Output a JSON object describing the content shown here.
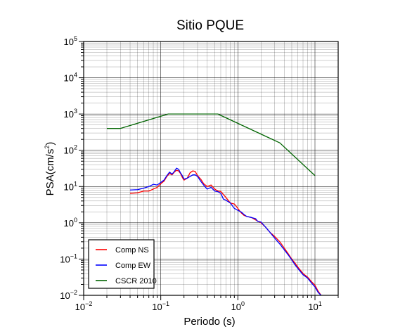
{
  "chart_data": {
    "type": "line",
    "title": "Sitio PQUE",
    "xlabel": "Periodo (s)",
    "ylabel": "PSA(cm/s²)",
    "ylabel_base": "PSA(cm/s",
    "ylabel_sup": "2",
    "ylabel_end": ")",
    "xscale": "log",
    "yscale": "log",
    "xlim": [
      0.01,
      20
    ],
    "ylim": [
      0.01,
      100000
    ],
    "grid": true,
    "legend_position": "bottom-left",
    "x_ticks": [
      {
        "base": "10",
        "exp": "−2"
      },
      {
        "base": "10",
        "exp": "−1"
      },
      {
        "base": "10",
        "exp": "0"
      },
      {
        "base": "10",
        "exp": "1"
      }
    ],
    "y_ticks": [
      {
        "base": "10",
        "exp": "−2"
      },
      {
        "base": "10",
        "exp": "−1"
      },
      {
        "base": "10",
        "exp": "0"
      },
      {
        "base": "10",
        "exp": "1"
      },
      {
        "base": "10",
        "exp": "2"
      },
      {
        "base": "10",
        "exp": "3"
      },
      {
        "base": "10",
        "exp": "4"
      },
      {
        "base": "10",
        "exp": "5"
      }
    ],
    "series": [
      {
        "name": "Comp NS",
        "color": "#ff0000",
        "points": [
          [
            0.04,
            6.5
          ],
          [
            0.05,
            6.7
          ],
          [
            0.06,
            7.5
          ],
          [
            0.07,
            7.5
          ],
          [
            0.08,
            8.5
          ],
          [
            0.09,
            9.5
          ],
          [
            0.1,
            12
          ],
          [
            0.11,
            14
          ],
          [
            0.12,
            19
          ],
          [
            0.13,
            23
          ],
          [
            0.14,
            21
          ],
          [
            0.15,
            25
          ],
          [
            0.16,
            28
          ],
          [
            0.17,
            27
          ],
          [
            0.18,
            23
          ],
          [
            0.19,
            18
          ],
          [
            0.2,
            15
          ],
          [
            0.22,
            17
          ],
          [
            0.24,
            24
          ],
          [
            0.26,
            27
          ],
          [
            0.28,
            26
          ],
          [
            0.3,
            20
          ],
          [
            0.33,
            16
          ],
          [
            0.36,
            12
          ],
          [
            0.4,
            10
          ],
          [
            0.45,
            11
          ],
          [
            0.5,
            8.5
          ],
          [
            0.55,
            7.5
          ],
          [
            0.6,
            7.3
          ],
          [
            0.7,
            5
          ],
          [
            0.8,
            3.5
          ],
          [
            0.9,
            3.3
          ],
          [
            1.0,
            2.5
          ],
          [
            1.1,
            1.9
          ],
          [
            1.2,
            1.6
          ],
          [
            1.3,
            1.5
          ],
          [
            1.5,
            1.4
          ],
          [
            1.7,
            1.2
          ],
          [
            2.0,
            1.0
          ],
          [
            2.3,
            0.75
          ],
          [
            2.6,
            0.55
          ],
          [
            3.0,
            0.42
          ],
          [
            3.5,
            0.3
          ],
          [
            4.0,
            0.2
          ],
          [
            4.5,
            0.14
          ],
          [
            5.0,
            0.1
          ],
          [
            5.5,
            0.078
          ],
          [
            6.0,
            0.06
          ],
          [
            7.0,
            0.04
          ],
          [
            8.0,
            0.032
          ],
          [
            9.0,
            0.024
          ],
          [
            10.0,
            0.019
          ],
          [
            11.0,
            0.013
          ],
          [
            12.0,
            0.01
          ]
        ]
      },
      {
        "name": "Comp EW",
        "color": "#0000ff",
        "points": [
          [
            0.04,
            8
          ],
          [
            0.05,
            8.2
          ],
          [
            0.06,
            9
          ],
          [
            0.07,
            10
          ],
          [
            0.08,
            11.5
          ],
          [
            0.09,
            11
          ],
          [
            0.1,
            13
          ],
          [
            0.11,
            15
          ],
          [
            0.12,
            20
          ],
          [
            0.13,
            25
          ],
          [
            0.14,
            22
          ],
          [
            0.15,
            26
          ],
          [
            0.16,
            32
          ],
          [
            0.17,
            30
          ],
          [
            0.18,
            24
          ],
          [
            0.19,
            20
          ],
          [
            0.2,
            16
          ],
          [
            0.22,
            17
          ],
          [
            0.24,
            19
          ],
          [
            0.26,
            21
          ],
          [
            0.28,
            21
          ],
          [
            0.3,
            19
          ],
          [
            0.33,
            14
          ],
          [
            0.36,
            11
          ],
          [
            0.4,
            8.5
          ],
          [
            0.45,
            9.5
          ],
          [
            0.5,
            7.5
          ],
          [
            0.55,
            7.2
          ],
          [
            0.6,
            6.5
          ],
          [
            0.65,
            4.5
          ],
          [
            0.7,
            4.2
          ],
          [
            0.8,
            3.5
          ],
          [
            0.9,
            2.5
          ],
          [
            1.0,
            2.2
          ],
          [
            1.1,
            2.0
          ],
          [
            1.2,
            1.7
          ],
          [
            1.3,
            1.5
          ],
          [
            1.5,
            1.4
          ],
          [
            1.7,
            1.3
          ],
          [
            1.8,
            1.1
          ],
          [
            2.0,
            1.05
          ],
          [
            2.3,
            0.75
          ],
          [
            2.6,
            0.55
          ],
          [
            3.0,
            0.38
          ],
          [
            3.5,
            0.26
          ],
          [
            4.0,
            0.18
          ],
          [
            4.5,
            0.13
          ],
          [
            5.0,
            0.095
          ],
          [
            5.5,
            0.07
          ],
          [
            6.0,
            0.055
          ],
          [
            7.0,
            0.037
          ],
          [
            8.0,
            0.03
          ],
          [
            9.0,
            0.022
          ],
          [
            10.0,
            0.017
          ],
          [
            11.0,
            0.012
          ],
          [
            12.0,
            0.01
          ]
        ]
      },
      {
        "name": "CSCR 2010",
        "color": "#006400",
        "points": [
          [
            0.02,
            400
          ],
          [
            0.03,
            400
          ],
          [
            0.125,
            1000
          ],
          [
            0.55,
            1000
          ],
          [
            3.5,
            160
          ],
          [
            10,
            20
          ]
        ]
      }
    ]
  }
}
